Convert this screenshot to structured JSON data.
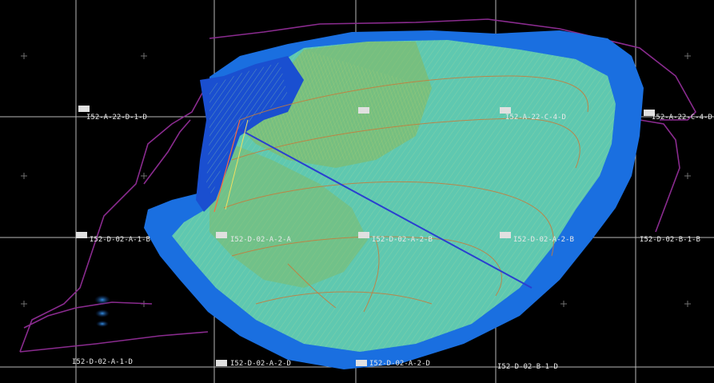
{
  "drawing": {
    "background_color": "#000000",
    "grid_color": "#d8d8d8",
    "boundary_color": "#8a2b8f",
    "water_color": "#1a6fe0",
    "surface_color": "#5fc8b0",
    "contour_color": "#c87a3a",
    "section_line_color": "#2a3fd0",
    "grid_labels": {
      "a22d1d": "I52-A-22-D-1-D",
      "a22c4d": "I52-A-22-C-4-D",
      "a22c4c": "I52-A-22-C-4-D",
      "d02a1b": "I52-D-02-A-1-B",
      "d02a2a": "I52-D-02-A-2-A",
      "d02a2b": "I52-D-02-A-2-B",
      "d02a2c": "I52-D-02-A-2-B",
      "d02b1b": "I52-D-02-B-1-B",
      "d02a1d": "I52-D-02-A-1-D",
      "d02a2d": "I52-D-02-A-2-D",
      "d02a2e": "I52-D-02-A-2-D",
      "d02b1d": "I52-D-02-B-1-D"
    }
  }
}
